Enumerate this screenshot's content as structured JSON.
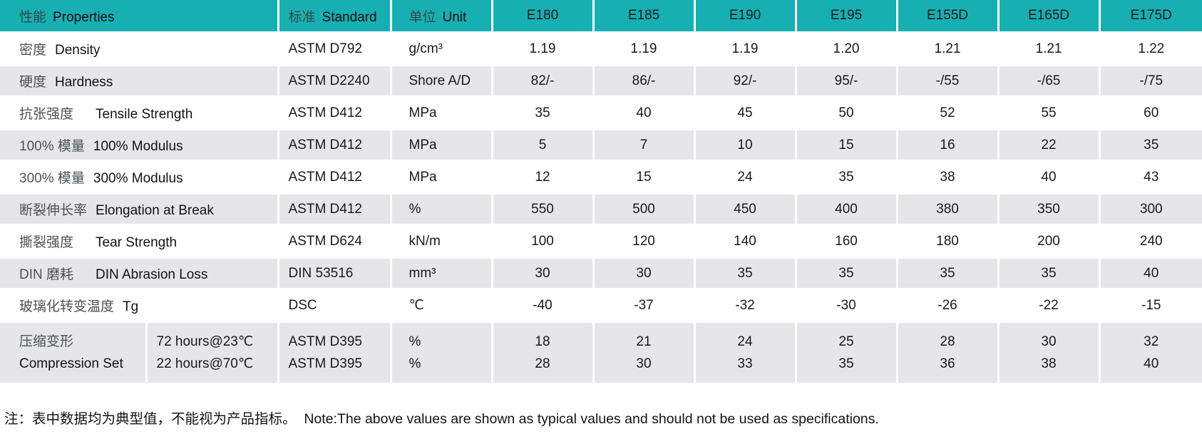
{
  "colors": {
    "header_bg": "#16b0b3",
    "row_alt_bg": "#e6e6e8",
    "header_zh_text": "#31494b",
    "body_text": "#1a1a1a"
  },
  "table": {
    "header": {
      "properties_zh": "性能",
      "properties_en": "Properties",
      "standard_zh": "标准",
      "standard_en": "Standard",
      "unit_zh": "单位",
      "unit_en": "Unit",
      "models": [
        "E180",
        "E185",
        "E190",
        "E195",
        "E155D",
        "E165D",
        "E175D"
      ]
    },
    "rows": [
      {
        "zh": "密度",
        "en": "Density",
        "standard": "ASTM D792",
        "unit": "g/cm³",
        "values": [
          "1.19",
          "1.19",
          "1.19",
          "1.20",
          "1.21",
          "1.21",
          "1.22"
        ]
      },
      {
        "zh": "硬度",
        "en": "Hardness",
        "standard": "ASTM D2240",
        "unit": "Shore A/D",
        "values": [
          "82/-",
          "86/-",
          "92/-",
          "95/-",
          "-/55",
          "-/65",
          "-/75"
        ]
      },
      {
        "zh": "抗张强度　",
        "en": "Tensile Strength",
        "standard": "ASTM D412",
        "unit": "MPa",
        "values": [
          "35",
          "40",
          "45",
          "50",
          "52",
          "55",
          "60"
        ]
      },
      {
        "zh": "100% 模量",
        "en": "100% Modulus",
        "standard": "ASTM D412",
        "unit": "MPa",
        "values": [
          "5",
          "7",
          "10",
          "15",
          "16",
          "22",
          "35"
        ]
      },
      {
        "zh": "300% 模量",
        "en": "300% Modulus",
        "standard": "ASTM D412",
        "unit": "MPa",
        "values": [
          "12",
          "15",
          "24",
          "35",
          "38",
          "40",
          "43"
        ]
      },
      {
        "zh": "断裂伸长率",
        "en": "Elongation at Break",
        "standard": "ASTM D412",
        "unit": "%",
        "values": [
          "550",
          "500",
          "450",
          "400",
          "380",
          "350",
          "300"
        ]
      },
      {
        "zh": "撕裂强度　",
        "en": "Tear Strength",
        "standard": "ASTM D624",
        "unit": "kN/m",
        "values": [
          "100",
          "120",
          "140",
          "160",
          "180",
          "200",
          "240"
        ]
      },
      {
        "zh": "DIN 磨耗　",
        "en": "DIN Abrasion Loss",
        "standard": "DIN 53516",
        "unit": "mm³",
        "values": [
          "30",
          "30",
          "35",
          "35",
          "35",
          "35",
          "40"
        ]
      },
      {
        "zh": "玻璃化转变温度",
        "en": "Tg",
        "standard": "DSC",
        "unit": "℃",
        "values": [
          "-40",
          "-37",
          "-32",
          "-30",
          "-26",
          "-22",
          "-15"
        ]
      }
    ],
    "compression_row": {
      "label_lines": [
        "压缩变形",
        "Compression Set"
      ],
      "condition_lines": [
        "72 hours@23℃",
        "22 hours@70℃"
      ],
      "standard_lines": [
        "ASTM D395",
        "ASTM D395"
      ],
      "unit_lines": [
        "%",
        "%"
      ],
      "value_lines": [
        [
          "18",
          "21",
          "24",
          "25",
          "28",
          "30",
          "32"
        ],
        [
          "28",
          "30",
          "33",
          "35",
          "36",
          "38",
          "40"
        ]
      ]
    }
  },
  "page": {
    "note": "注：表中数据均为典型值，不能视为产品指标。  Note:The above values are shown as typical values and should not be used as specifications."
  }
}
